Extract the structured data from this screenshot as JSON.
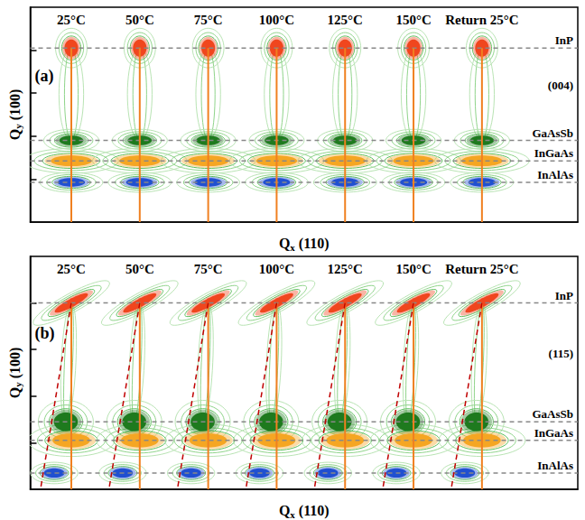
{
  "chart_data": [
    {
      "type": "rsm",
      "panel": "(a)",
      "reflection": "(004)",
      "xlabel": "Qx (110)",
      "ylabel": "Qy (100)",
      "tick_labels": false,
      "xlim": [
        0,
        8
      ],
      "ylim": [
        0,
        10
      ],
      "yticks": [
        2,
        4,
        6,
        8
      ],
      "categories": [
        "25°C",
        "50°C",
        "75°C",
        "100°C",
        "125°C",
        "150°C",
        "Return 25°C"
      ],
      "x": [
        0.6,
        1.6,
        2.6,
        3.6,
        4.6,
        5.6,
        6.6
      ],
      "series": [
        {
          "name": "InP",
          "color": "#f0461e",
          "qy": 8.1,
          "qx_offset": 0,
          "width": 0.2,
          "height": 0.8
        },
        {
          "name": "GaAsSb",
          "color": "#1e7a1e",
          "qy": 3.8,
          "qx_offset": 0,
          "width": 0.35,
          "height": 0.45
        },
        {
          "name": "InGaAs",
          "color": "#f5a623",
          "qy": 2.85,
          "qx_offset": 0,
          "width": 0.6,
          "height": 0.5
        },
        {
          "name": "InAlAs",
          "color": "#2050d0",
          "qy": 1.85,
          "qx_offset": 0,
          "width": 0.4,
          "height": 0.4
        }
      ]
    },
    {
      "type": "rsm",
      "panel": "(b)",
      "reflection": "(115)",
      "xlabel": "Qx (110)",
      "ylabel": "Qy (100)",
      "tick_labels": false,
      "xlim": [
        0,
        8
      ],
      "ylim": [
        0,
        10
      ],
      "yticks": [
        2,
        4,
        6,
        8
      ],
      "categories": [
        "25°C",
        "50°C",
        "75°C",
        "100°C",
        "125°C",
        "150°C",
        "Return 25°C"
      ],
      "x": [
        0.6,
        1.6,
        2.6,
        3.6,
        4.6,
        5.6,
        6.6
      ],
      "relaxation_line": {
        "x_offset_at_ymin": -0.45
      },
      "series": [
        {
          "name": "InP",
          "color": "#f0461e",
          "qy": 8.0,
          "qx_offset": 0,
          "width": 0.55,
          "height": 0.35
        },
        {
          "name": "GaAsSb",
          "color": "#1e7a1e",
          "qy": 2.9,
          "qx_offset": -0.08,
          "width": 0.35,
          "height": 0.8
        },
        {
          "name": "InGaAs",
          "color": "#f5a623",
          "qy": 2.1,
          "qx_offset": 0,
          "width": 0.55,
          "height": 0.6
        },
        {
          "name": "InAlAs",
          "color": "#2050d0",
          "qy": 0.7,
          "qx_offset": -0.25,
          "width": 0.3,
          "height": 0.4
        }
      ]
    }
  ]
}
